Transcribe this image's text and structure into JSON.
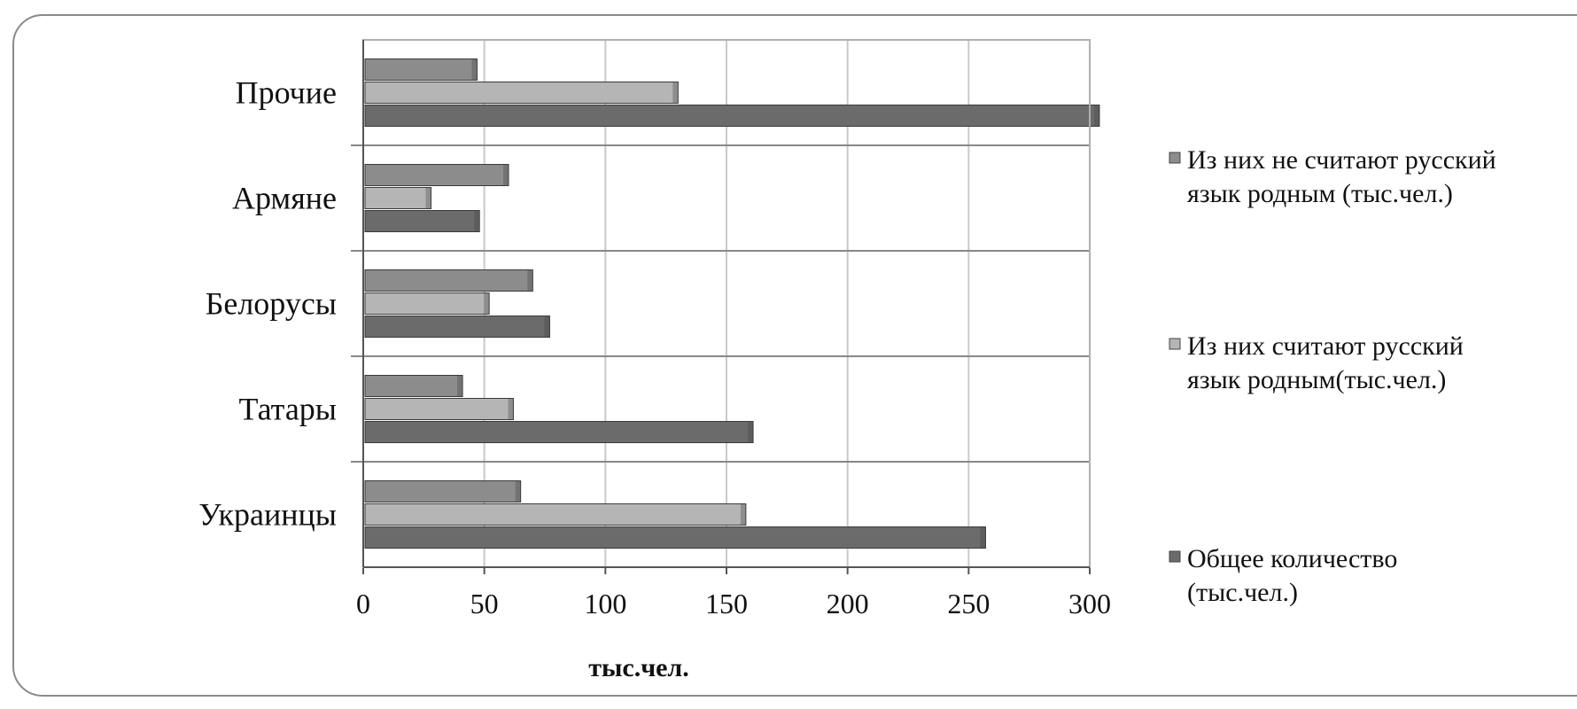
{
  "chart_data": {
    "type": "bar",
    "orientation": "horizontal",
    "categories": [
      "Украинцы",
      "Татары",
      "Белорусы",
      "Армяне",
      "Прочие"
    ],
    "series": [
      {
        "name": "Общее количество (тыс.чел.)",
        "legend_lines": [
          "Общее количество",
          "(тыс.чел.)"
        ],
        "color": "#6b6b6b",
        "values": [
          257,
          161,
          77,
          48,
          304
        ]
      },
      {
        "name": "Из них считают русский язык родным(тыс.чел.)",
        "legend_lines": [
          "Из них считают русский",
          "язык родным(тыс.чел.)"
        ],
        "color": "#b5b5b5",
        "values": [
          158,
          62,
          52,
          28,
          130
        ]
      },
      {
        "name": "Из них не считают русский язык родным (тыс.чел.)",
        "legend_lines": [
          "Из них не считают русский",
          "язык родным (тыс.чел.)"
        ],
        "color": "#8c8c8c",
        "values": [
          65,
          41,
          70,
          60,
          47
        ]
      }
    ],
    "xlabel": "тыс.чел.",
    "ylabel": "",
    "title": "",
    "xlim": [
      0,
      300
    ],
    "xticks": [
      0,
      50,
      100,
      150,
      200,
      250,
      300
    ],
    "grid": true,
    "legend_position": "right"
  }
}
